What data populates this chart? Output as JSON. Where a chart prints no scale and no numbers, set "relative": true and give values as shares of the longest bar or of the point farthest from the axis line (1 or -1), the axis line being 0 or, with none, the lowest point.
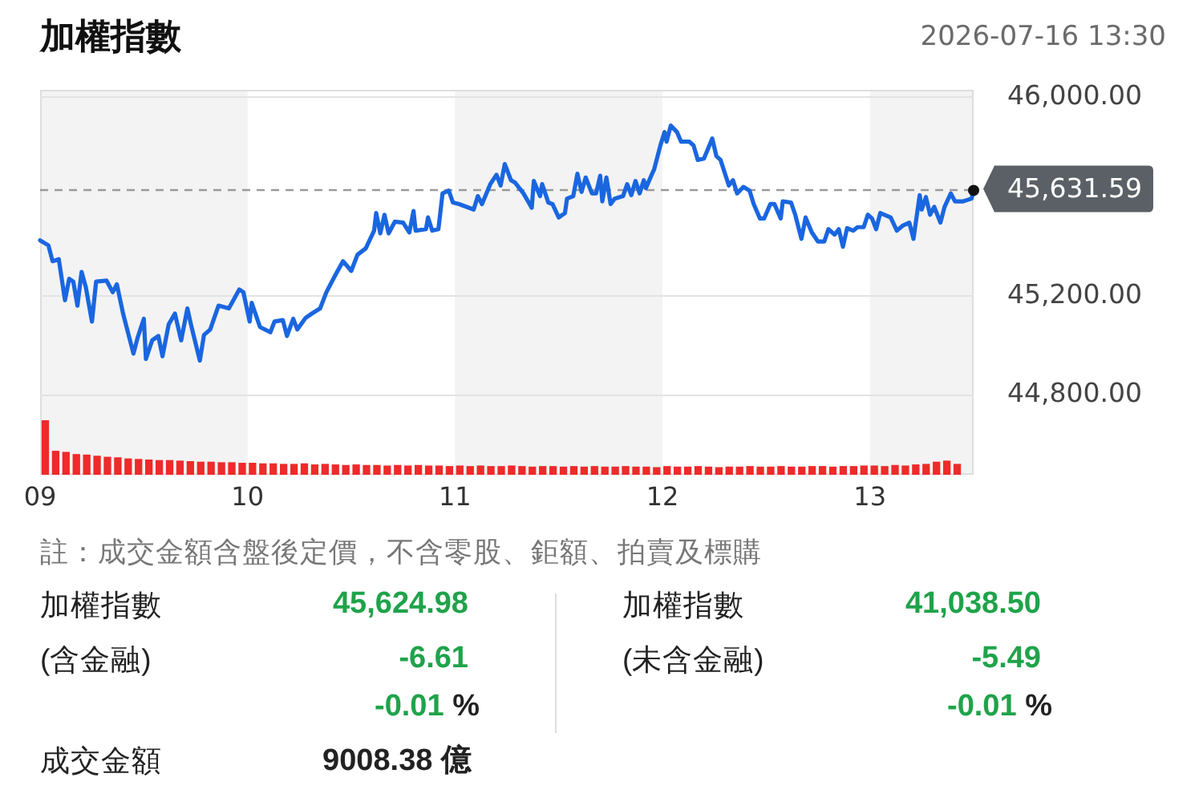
{
  "chart_data": [
    {
      "type": "line",
      "title": "加權指數",
      "subtitle": "2026-07-16 13:30",
      "x": [
        9,
        9.04,
        9.06,
        9.09,
        9.12,
        9.14,
        9.16,
        9.18,
        9.2,
        9.22,
        9.25,
        9.27,
        9.32,
        9.35,
        9.37,
        9.4,
        9.45,
        9.47,
        9.5,
        9.51,
        9.54,
        9.57,
        9.59,
        9.62,
        9.65,
        9.68,
        9.71,
        9.73,
        9.77,
        9.79,
        9.82,
        9.86,
        9.91,
        9.96,
        9.98,
        10.01,
        10.02,
        10.06,
        10.11,
        10.13,
        10.17,
        10.19,
        10.22,
        10.24,
        10.28,
        10.31,
        10.35,
        10.38,
        10.42,
        10.46,
        10.5,
        10.53,
        10.57,
        10.61,
        10.62,
        10.64,
        10.66,
        10.68,
        10.71,
        10.75,
        10.78,
        10.8,
        10.81,
        10.86,
        10.87,
        10.89,
        10.92,
        10.94,
        10.97,
        10.99,
        11.02,
        11.09,
        11.11,
        11.13,
        11.17,
        11.2,
        11.22,
        11.24,
        11.27,
        11.29,
        11.33,
        11.37,
        11.38,
        11.41,
        11.42,
        11.45,
        11.47,
        11.5,
        11.53,
        11.54,
        11.57,
        11.59,
        11.61,
        11.63,
        11.66,
        11.68,
        11.7,
        11.71,
        11.73,
        11.75,
        11.77,
        11.81,
        11.83,
        11.85,
        11.87,
        11.89,
        11.91,
        11.92,
        11.95,
        11.96,
        11.99,
        12.01,
        12.02,
        12.04,
        12.07,
        12.09,
        12.13,
        12.15,
        12.17,
        12.2,
        12.24,
        12.26,
        12.28,
        12.32,
        12.34,
        12.36,
        12.39,
        12.42,
        12.44,
        12.47,
        12.49,
        12.52,
        12.54,
        12.57,
        12.58,
        12.62,
        12.64,
        12.67,
        12.69,
        12.72,
        12.75,
        12.78,
        12.8,
        12.83,
        12.85,
        12.87,
        12.89,
        12.92,
        12.94,
        12.97,
        12.99,
        13.01,
        13.03,
        13.05,
        13.1,
        13.13,
        13.16,
        13.19,
        13.21,
        13.24,
        13.25,
        13.27,
        13.29,
        13.31,
        13.34,
        13.36,
        13.39,
        13.41,
        13.45,
        13.49,
        13.5
      ],
      "values": [
        45424,
        45404,
        45340,
        45348,
        45183,
        45269,
        45258,
        45161,
        45297,
        45237,
        45097,
        45258,
        45262,
        45215,
        45247,
        45129,
        44968,
        45032,
        45108,
        44946,
        45021,
        45039,
        44957,
        45086,
        45129,
        45021,
        45150,
        45075,
        44940,
        45043,
        45065,
        45161,
        45150,
        45226,
        45215,
        45097,
        45172,
        45075,
        45054,
        45097,
        45103,
        45039,
        45108,
        45065,
        45112,
        45129,
        45150,
        45215,
        45279,
        45340,
        45301,
        45366,
        45392,
        45463,
        45534,
        45452,
        45527,
        45452,
        45499,
        45495,
        45456,
        45542,
        45463,
        45469,
        45516,
        45463,
        45469,
        45613,
        45624,
        45576,
        45570,
        45548,
        45602,
        45570,
        45650,
        45688,
        45645,
        45731,
        45666,
        45656,
        45613,
        45555,
        45663,
        45602,
        45650,
        45576,
        45570,
        45516,
        45534,
        45592,
        45602,
        45692,
        45619,
        45677,
        45613,
        45613,
        45684,
        45581,
        45677,
        45570,
        45592,
        45602,
        45650,
        45606,
        45663,
        45613,
        45666,
        45634,
        45692,
        45710,
        45806,
        45860,
        45821,
        45886,
        45860,
        45821,
        45821,
        45806,
        45748,
        45753,
        45834,
        45763,
        45748,
        45645,
        45666,
        45613,
        45639,
        45624,
        45570,
        45512,
        45512,
        45570,
        45570,
        45512,
        45581,
        45576,
        45527,
        45430,
        45516,
        45456,
        45419,
        45419,
        45469,
        45447,
        45469,
        45398,
        45473,
        45463,
        45477,
        45477,
        45527,
        45512,
        45469,
        45534,
        45516,
        45463,
        45484,
        45495,
        45430,
        45606,
        45548,
        45598,
        45527,
        45559,
        45495,
        45559,
        45613,
        45581,
        45581,
        45592,
        45625
      ],
      "color": "#1a66e0",
      "xlim": [
        9,
        13.5
      ],
      "xticks": [
        {
          "value": 9,
          "label": "09"
        },
        10,
        11,
        12,
        13
      ],
      "ylim": [
        44480,
        46030
      ],
      "yticks": [
        {
          "value": 44800,
          "label": "44,800.00"
        },
        {
          "value": 45200,
          "label": "45,200.00"
        },
        {
          "value": 46000,
          "label": "46,000.00"
        }
      ],
      "grid": "y",
      "bands": [
        {
          "axis": "x",
          "from": 9,
          "to": 10,
          "color": "#f3f3f3"
        },
        {
          "axis": "x",
          "from": 11,
          "to": 12,
          "color": "#f3f3f3"
        },
        {
          "axis": "x",
          "from": 13,
          "to": 13.5,
          "color": "#f3f3f3"
        }
      ],
      "ref_lines": [
        {
          "axis": "y",
          "value": 45631.59,
          "label": "45,631.59",
          "color": "#9a9a9a",
          "line_style": "dashed"
        }
      ]
    },
    {
      "type": "bar",
      "relative": true,
      "tick_labels": false,
      "color": "#ee2a2a",
      "categories": [
        null,
        null,
        null,
        null,
        null,
        null,
        null,
        null,
        null,
        null,
        null,
        null,
        null,
        null,
        null,
        null,
        null,
        null,
        null,
        null,
        null,
        null,
        null,
        null,
        null,
        null,
        null,
        null,
        null,
        null,
        null,
        null,
        null,
        null,
        null,
        null,
        null,
        null,
        null,
        null,
        null,
        null,
        null,
        null,
        null,
        null,
        null,
        null,
        null,
        null,
        null,
        null,
        null,
        null,
        null,
        null,
        null,
        null,
        null,
        null,
        null,
        null,
        null,
        null,
        null,
        null,
        null,
        null,
        null,
        null,
        null,
        null,
        null,
        null,
        null,
        null,
        null,
        null,
        null,
        null,
        null,
        null,
        null,
        null,
        null,
        null,
        null,
        null,
        null
      ],
      "values": [
        1,
        0.44,
        0.42,
        0.38,
        0.37,
        0.35,
        0.33,
        0.32,
        0.3,
        0.29,
        0.28,
        0.27,
        0.27,
        0.26,
        0.25,
        0.24,
        0.24,
        0.23,
        0.23,
        0.22,
        0.22,
        0.21,
        0.21,
        0.2,
        0.2,
        0.21,
        0.19,
        0.2,
        0.19,
        0.18,
        0.19,
        0.18,
        0.18,
        0.17,
        0.18,
        0.17,
        0.18,
        0.17,
        0.17,
        0.16,
        0.17,
        0.16,
        0.17,
        0.16,
        0.16,
        0.17,
        0.16,
        0.15,
        0.16,
        0.16,
        0.15,
        0.16,
        0.15,
        0.16,
        0.15,
        0.15,
        0.16,
        0.15,
        0.15,
        0.14,
        0.16,
        0.15,
        0.15,
        0.16,
        0.15,
        0.14,
        0.15,
        0.15,
        0.16,
        0.15,
        0.15,
        0.16,
        0.15,
        0.15,
        0.16,
        0.16,
        0.15,
        0.16,
        0.16,
        0.17,
        0.17,
        0.16,
        0.18,
        0.17,
        0.19,
        0.2,
        0.24,
        0.26,
        0.2
      ]
    },
    {
      "type": "other",
      "annotations": [
        "註：成交金額含盤後定價，不含零股、鉅額、拍賣及標購",
        "加權指數",
        "45,624.98",
        "(含金融)",
        "-6.61",
        "-0.01 %",
        "加權指數",
        "41,038.50",
        "(未含金融)",
        "-5.49",
        "-0.01 %",
        "成交金額",
        "9008.38 億"
      ]
    }
  ]
}
